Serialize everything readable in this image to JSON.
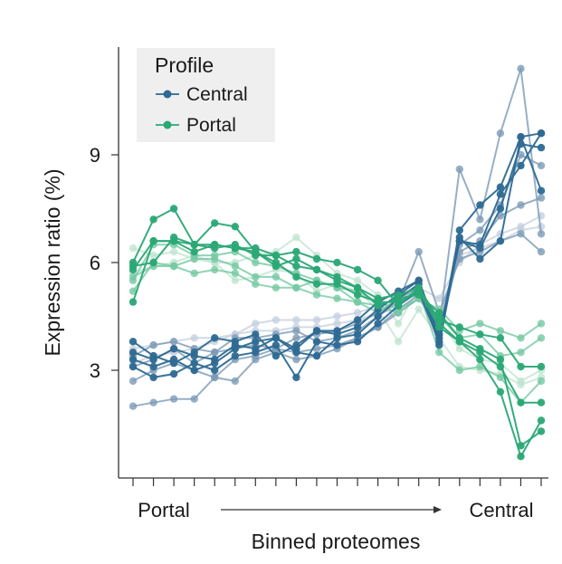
{
  "chart_data": {
    "type": "line",
    "title": "",
    "xlabel": "Binned proteomes",
    "ylabel": "Expression ratio (%)",
    "ylim": [
      0,
      12
    ],
    "yticks": [
      3,
      6,
      9
    ],
    "n_bins": 21,
    "x_start_label": "Portal",
    "x_end_label": "Central",
    "legend": {
      "title": "Profile",
      "entries": [
        {
          "name": "Central",
          "color": "#2e6a93"
        },
        {
          "name": "Portal",
          "color": "#2aa876"
        }
      ]
    },
    "colors": {
      "central": "#2e6a93",
      "central_light": "#7d9bb6",
      "central_pale": "#c3cedd",
      "portal": "#2aa876",
      "portal_light": "#74c9a3",
      "portal_pale": "#bde3cf"
    },
    "series": [
      {
        "name": "Central 1",
        "group": "Central",
        "tone": "pale",
        "values": [
          3.2,
          3.4,
          3.5,
          3.6,
          3.8,
          4.0,
          4.3,
          4.4,
          4.4,
          4.4,
          4.5,
          4.6,
          4.8,
          5.0,
          5.3,
          5.0,
          6.0,
          6.5,
          6.8,
          7.0,
          7.3
        ]
      },
      {
        "name": "Central 2",
        "group": "Central",
        "tone": "pale",
        "values": [
          3.6,
          3.7,
          3.8,
          3.9,
          3.9,
          4.0,
          4.1,
          4.1,
          4.2,
          4.2,
          4.3,
          4.4,
          4.6,
          4.7,
          5.0,
          4.5,
          6.2,
          6.4,
          6.6,
          6.9,
          7.0
        ]
      },
      {
        "name": "Central 3",
        "group": "Central",
        "tone": "light",
        "values": [
          3.4,
          3.7,
          3.8,
          3.6,
          3.5,
          3.9,
          3.9,
          4.0,
          4.1,
          3.8,
          3.9,
          4.1,
          4.5,
          4.9,
          6.3,
          4.6,
          6.1,
          6.3,
          6.6,
          6.8,
          6.3
        ]
      },
      {
        "name": "Central 4",
        "group": "Central",
        "tone": "light",
        "values": [
          2.7,
          3.0,
          3.2,
          3.0,
          2.8,
          3.3,
          3.4,
          3.6,
          3.5,
          3.6,
          3.7,
          3.9,
          4.2,
          4.6,
          5.0,
          4.2,
          8.6,
          7.2,
          9.6,
          11.4,
          6.8
        ]
      },
      {
        "name": "Central 5",
        "group": "Central",
        "tone": "light",
        "values": [
          2.0,
          2.1,
          2.2,
          2.2,
          2.8,
          2.7,
          3.3,
          3.5,
          3.3,
          3.4,
          3.6,
          3.9,
          4.2,
          4.7,
          5.1,
          4.0,
          6.3,
          6.6,
          7.3,
          7.6,
          7.8
        ]
      },
      {
        "name": "Central 6",
        "group": "Central",
        "tone": "light",
        "values": [
          3.1,
          3.3,
          3.6,
          3.2,
          3.5,
          3.6,
          3.7,
          3.6,
          3.9,
          4.0,
          4.1,
          4.3,
          4.6,
          5.0,
          5.3,
          4.2,
          6.5,
          6.9,
          7.6,
          9.0,
          8.7
        ]
      },
      {
        "name": "Central 7",
        "group": "Central",
        "tone": "dark",
        "values": [
          3.1,
          2.8,
          2.9,
          3.2,
          3.0,
          3.4,
          3.5,
          3.7,
          2.8,
          3.8,
          3.7,
          3.8,
          4.3,
          4.8,
          5.2,
          3.8,
          6.9,
          7.6,
          8.1,
          9.5,
          8.0
        ]
      },
      {
        "name": "Central 8",
        "group": "Central",
        "tone": "dark",
        "values": [
          3.3,
          3.1,
          3.3,
          3.0,
          3.2,
          3.6,
          3.8,
          3.9,
          3.5,
          3.4,
          3.9,
          4.0,
          4.5,
          5.0,
          5.4,
          3.9,
          6.6,
          6.4,
          7.5,
          9.3,
          9.2
        ]
      },
      {
        "name": "Central 9",
        "group": "Central",
        "tone": "dark",
        "values": [
          3.5,
          3.3,
          3.6,
          3.4,
          3.3,
          3.7,
          3.6,
          3.9,
          3.6,
          4.1,
          4.0,
          4.2,
          4.7,
          5.1,
          5.5,
          4.0,
          6.6,
          6.5,
          7.9,
          8.7,
          9.6
        ]
      },
      {
        "name": "Central 10",
        "group": "Central",
        "tone": "dark",
        "values": [
          3.8,
          3.4,
          3.2,
          3.5,
          3.9,
          3.8,
          4.0,
          3.4,
          3.7,
          4.1,
          4.1,
          4.4,
          4.9,
          5.2,
          5.5,
          3.7,
          6.7,
          6.1,
          6.6,
          9.5,
          9.6
        ]
      },
      {
        "name": "Portal 1",
        "group": "Portal",
        "tone": "pale",
        "values": [
          6.4,
          6.2,
          6.3,
          6.1,
          6.0,
          6.0,
          6.2,
          6.3,
          6.7,
          6.2,
          5.7,
          5.5,
          5.1,
          4.3,
          5.3,
          4.4,
          3.6,
          3.3,
          3.2,
          2.7,
          3.0
        ]
      },
      {
        "name": "Portal 2",
        "group": "Portal",
        "tone": "pale",
        "values": [
          5.7,
          5.9,
          6.0,
          6.2,
          6.0,
          5.5,
          5.6,
          5.8,
          5.7,
          5.2,
          5.4,
          5.2,
          4.7,
          3.8,
          4.7,
          3.9,
          3.1,
          3.0,
          2.9,
          2.6,
          2.8
        ]
      },
      {
        "name": "Portal 3",
        "group": "Portal",
        "tone": "light",
        "values": [
          5.6,
          5.9,
          5.9,
          6.1,
          6.1,
          5.9,
          5.6,
          5.6,
          5.3,
          5.5,
          5.3,
          4.9,
          4.6,
          5.0,
          5.2,
          3.5,
          3.0,
          3.1,
          2.8,
          2.1,
          2.7
        ]
      },
      {
        "name": "Portal 4",
        "group": "Portal",
        "tone": "light",
        "values": [
          5.2,
          6.0,
          5.9,
          5.7,
          5.8,
          5.7,
          5.4,
          5.3,
          5.3,
          5.1,
          5.0,
          4.9,
          4.8,
          4.6,
          5.0,
          4.7,
          4.1,
          4.3,
          4.1,
          3.9,
          4.3
        ]
      },
      {
        "name": "Portal 5",
        "group": "Portal",
        "tone": "light",
        "values": [
          5.5,
          6.5,
          6.5,
          6.2,
          6.2,
          6.3,
          6.0,
          5.9,
          5.7,
          5.5,
          5.3,
          5.2,
          4.9,
          4.7,
          5.0,
          4.5,
          3.9,
          4.0,
          3.4,
          3.5,
          3.9
        ]
      },
      {
        "name": "Portal 6",
        "group": "Portal",
        "tone": "dark",
        "values": [
          4.9,
          6.6,
          6.6,
          6.5,
          6.4,
          6.5,
          6.2,
          6.2,
          5.9,
          5.8,
          5.5,
          5.3,
          5.0,
          5.1,
          5.3,
          4.3,
          3.8,
          3.5,
          3.1,
          2.1,
          2.1
        ]
      },
      {
        "name": "Portal 7",
        "group": "Portal",
        "tone": "dark",
        "values": [
          6.0,
          7.2,
          7.5,
          6.5,
          7.1,
          7.0,
          6.3,
          5.9,
          6.1,
          5.8,
          5.6,
          5.3,
          4.8,
          5.0,
          5.1,
          4.6,
          3.9,
          3.6,
          3.3,
          0.9,
          1.3
        ]
      },
      {
        "name": "Portal 8",
        "group": "Portal",
        "tone": "dark",
        "values": [
          5.9,
          6.0,
          6.7,
          6.5,
          6.5,
          6.4,
          6.3,
          6.0,
          5.6,
          5.4,
          5.4,
          5.1,
          4.9,
          4.9,
          5.2,
          4.2,
          3.8,
          3.3,
          2.4,
          0.6,
          1.6
        ]
      },
      {
        "name": "Portal 9",
        "group": "Portal",
        "tone": "dark",
        "values": [
          5.8,
          6.6,
          6.6,
          6.3,
          6.5,
          6.4,
          6.4,
          6.2,
          6.3,
          6.1,
          6.0,
          5.8,
          5.5,
          4.8,
          5.3,
          4.4,
          4.2,
          4.0,
          3.9,
          3.1,
          3.1
        ]
      }
    ]
  }
}
